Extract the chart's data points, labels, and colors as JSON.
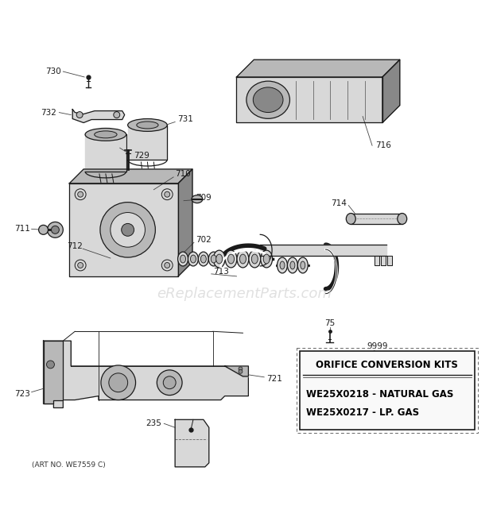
{
  "bg_color": "#ffffff",
  "fig_width": 6.2,
  "fig_height": 6.61,
  "dpi": 100,
  "watermark": "eReplacementParts.com",
  "watermark_color": "#c8c8c8",
  "watermark_alpha": 0.55,
  "art_no": "(ART NO. WE7559 C)",
  "box_title": "ORIFICE CONVERSION KITS",
  "box_line1": "WE25X0218 - NATURAL GAS",
  "box_line2": "WE25X0217 - LP. GAS",
  "line_color": "#1a1a1a",
  "label_color": "#111111",
  "box_border_color": "#111111",
  "gray_fill": "#d8d8d8",
  "dark_gray": "#888888",
  "mid_gray": "#b8b8b8"
}
